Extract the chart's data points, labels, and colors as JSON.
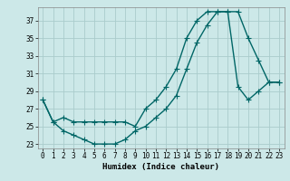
{
  "xlabel": "Humidex (Indice chaleur)",
  "background_color": "#cce8e8",
  "grid_color": "#aacccc",
  "line_color": "#006666",
  "xlim": [
    -0.5,
    23.5
  ],
  "ylim": [
    22.5,
    38.5
  ],
  "yticks": [
    23,
    25,
    27,
    29,
    31,
    33,
    35,
    37
  ],
  "xticks": [
    0,
    1,
    2,
    3,
    4,
    5,
    6,
    7,
    8,
    9,
    10,
    11,
    12,
    13,
    14,
    15,
    16,
    17,
    18,
    19,
    20,
    21,
    22,
    23
  ],
  "line1_x": [
    0,
    1,
    2,
    3,
    4,
    5,
    6,
    7,
    8,
    9,
    10,
    11,
    12,
    13,
    14,
    15,
    16,
    17,
    18,
    19,
    20,
    21,
    22,
    23
  ],
  "line1_y": [
    28.0,
    25.5,
    26.0,
    25.5,
    25.5,
    25.5,
    25.5,
    25.5,
    25.5,
    25.0,
    27.0,
    28.0,
    29.5,
    31.5,
    35.0,
    37.0,
    38.0,
    38.0,
    38.0,
    38.0,
    35.0,
    32.5,
    30.0,
    30.0
  ],
  "line2_x": [
    0,
    1,
    2,
    3,
    4,
    5,
    6,
    7,
    8,
    9,
    10,
    11,
    12,
    13,
    14,
    15,
    16,
    17,
    18,
    19,
    20,
    21,
    22,
    23
  ],
  "line2_y": [
    28.0,
    25.5,
    24.5,
    24.0,
    23.5,
    23.0,
    23.0,
    23.0,
    23.5,
    24.5,
    25.0,
    26.0,
    27.0,
    28.5,
    31.5,
    34.5,
    36.5,
    38.0,
    38.0,
    29.5,
    28.0,
    29.0,
    30.0,
    30.0
  ]
}
